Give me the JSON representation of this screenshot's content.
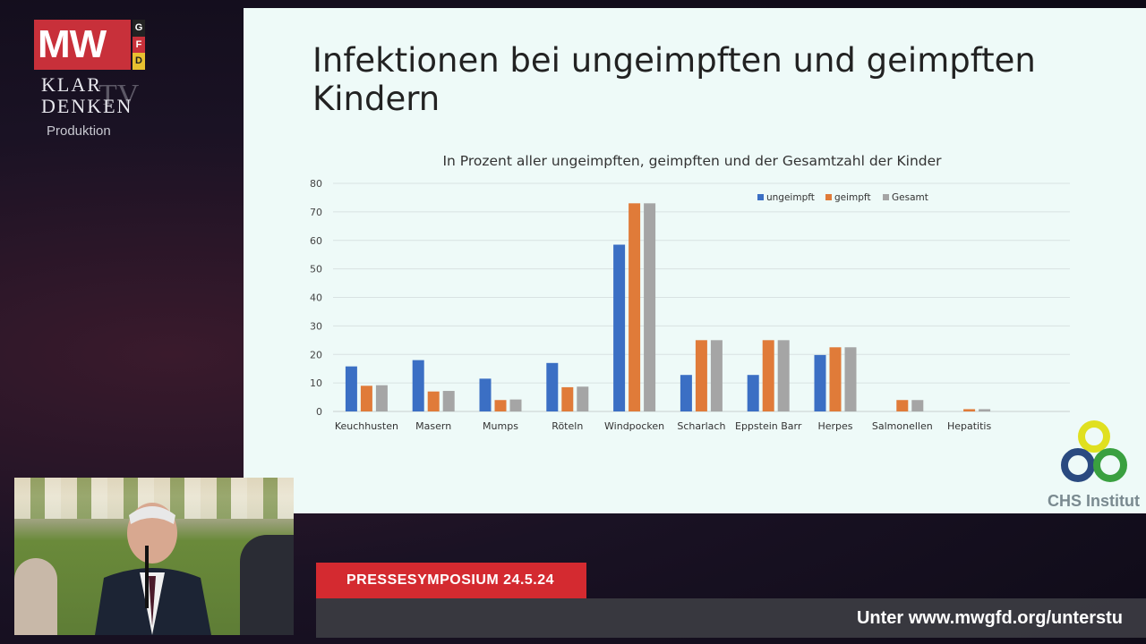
{
  "logo": {
    "mw": "MW",
    "gfd": [
      "G",
      "F",
      "D"
    ],
    "klar": "KLAR",
    "denken": "DENKEN",
    "tv": "TV",
    "produktion": "Produktion"
  },
  "slide": {
    "title": "Infektionen bei ungeimpften und geimpften Kindern"
  },
  "chart_data": {
    "type": "bar",
    "title": "In Prozent  aller ungeimpften, geimpften und der Gesamtzahl der Kinder",
    "categories": [
      "Keuchhusten",
      "Masern",
      "Mumps",
      "Röteln",
      "Windpocken",
      "Scharlach",
      "Eppstein Barr",
      "Herpes",
      "Salmonellen",
      "Hepatitis"
    ],
    "series": [
      {
        "name": "ungeimpft",
        "color": "#3b6fc4",
        "values": [
          15.8,
          18,
          11.5,
          17,
          58.5,
          12.8,
          12.8,
          19.8,
          0,
          0
        ]
      },
      {
        "name": "geimpft",
        "color": "#e07b39",
        "values": [
          9,
          7,
          4,
          8.5,
          73,
          25,
          25,
          22.5,
          4,
          0.8
        ]
      },
      {
        "name": "Gesamt",
        "color": "#a5a5a5",
        "values": [
          9.2,
          7.2,
          4.2,
          8.7,
          73,
          25,
          25,
          22.5,
          4,
          0.8
        ]
      }
    ],
    "yticks": [
      0,
      10,
      20,
      30,
      40,
      50,
      60,
      70,
      80
    ],
    "ylim": [
      0,
      80
    ],
    "grid": true,
    "legend": "top-right"
  },
  "institute": {
    "name": "CHS Institut"
  },
  "banner": {
    "event": "PRESSESYMPOSIUM 24.5.24",
    "ticker": "Unter www.mwgfd.org/unterstu"
  }
}
